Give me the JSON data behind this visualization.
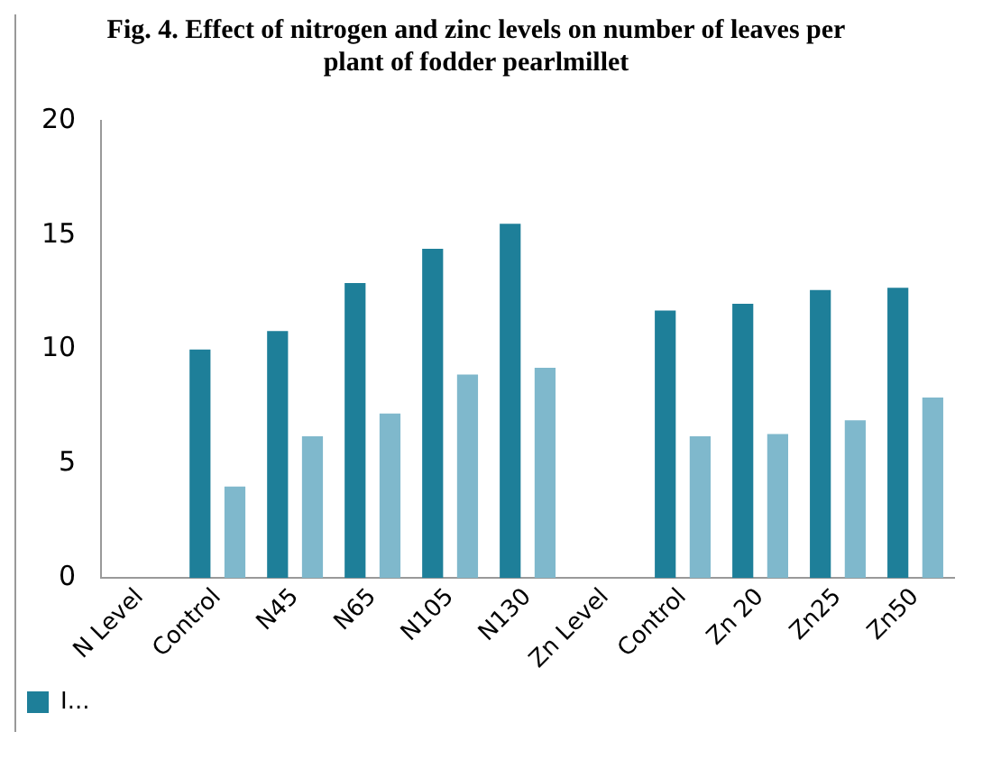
{
  "chart_data": {
    "type": "bar",
    "title": "Fig. 4. Effect of nitrogen and zinc levels on number of leaves per plant of fodder pearlmillet",
    "categories": [
      "N Level",
      "Control",
      "N45",
      "N65",
      "N105",
      "N130",
      "Zn Level",
      "Control",
      "Zn 20",
      "Zn25",
      "Zn50"
    ],
    "series": [
      {
        "name": "I...",
        "color": "#1e7f99",
        "values": [
          null,
          10.0,
          10.8,
          12.9,
          14.4,
          15.5,
          null,
          11.7,
          12.0,
          12.6,
          12.7
        ]
      },
      {
        "color": "#7fb8cc",
        "values": [
          null,
          4.0,
          6.2,
          7.2,
          8.9,
          9.2,
          null,
          6.2,
          6.3,
          6.9,
          7.9
        ]
      }
    ],
    "ylim": [
      0,
      20
    ],
    "yticks": [
      0,
      5,
      10,
      15,
      20
    ],
    "grid": false,
    "legend": "bottom"
  }
}
